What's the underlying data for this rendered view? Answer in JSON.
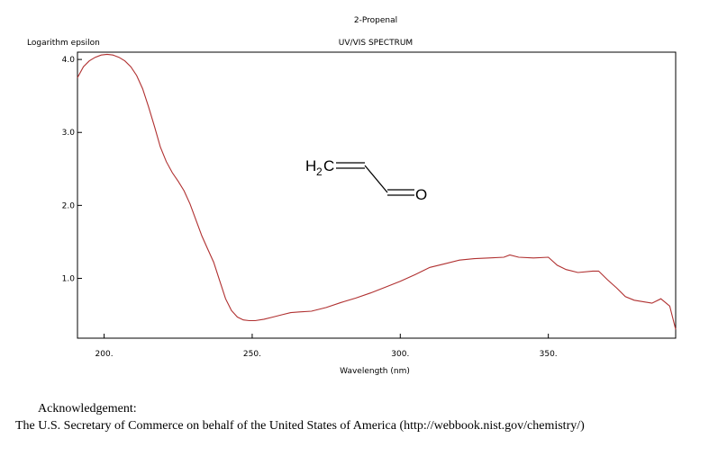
{
  "chart_data": {
    "type": "line",
    "title": "2-Propenal",
    "subtitle": "UV/VIS SPECTRUM",
    "xlabel": "Wavelength (nm)",
    "ylabel": "Logarithm epsilon",
    "xlim": [
      191,
      393
    ],
    "ylim": [
      0.18,
      4.1
    ],
    "x_ticks": [
      {
        "value": 200,
        "label": "200."
      },
      {
        "value": 250,
        "label": "250."
      },
      {
        "value": 300,
        "label": "300."
      },
      {
        "value": 350,
        "label": "350."
      }
    ],
    "y_ticks": [
      {
        "value": 4.0,
        "label": "4.0"
      },
      {
        "value": 3.0,
        "label": "3.0"
      },
      {
        "value": 2.0,
        "label": "2.0"
      },
      {
        "value": 1.0,
        "label": "1.0"
      }
    ],
    "line_color": "#b03030",
    "series": [
      {
        "x": [
          191,
          193,
          195,
          197,
          199,
          201,
          203,
          205,
          207,
          209,
          211,
          213,
          215,
          217,
          219,
          221,
          223,
          225,
          227,
          229,
          231,
          233,
          235,
          237,
          239,
          241,
          243,
          245,
          247,
          249,
          251,
          254,
          257,
          260,
          263,
          266,
          270,
          275,
          280,
          285,
          290,
          295,
          300,
          305,
          310,
          315,
          320,
          325,
          330,
          335,
          337,
          340,
          345,
          350,
          353,
          356,
          360,
          365,
          367,
          370,
          373,
          376,
          379,
          382,
          385,
          388,
          391,
          393
        ],
        "y": [
          3.75,
          3.9,
          3.98,
          4.03,
          4.06,
          4.07,
          4.06,
          4.03,
          3.98,
          3.9,
          3.78,
          3.6,
          3.35,
          3.08,
          2.8,
          2.6,
          2.45,
          2.33,
          2.2,
          2.02,
          1.8,
          1.58,
          1.4,
          1.22,
          0.97,
          0.72,
          0.56,
          0.47,
          0.43,
          0.42,
          0.42,
          0.44,
          0.47,
          0.5,
          0.53,
          0.54,
          0.55,
          0.6,
          0.67,
          0.73,
          0.8,
          0.88,
          0.96,
          1.05,
          1.15,
          1.2,
          1.25,
          1.27,
          1.28,
          1.29,
          1.32,
          1.29,
          1.28,
          1.29,
          1.18,
          1.12,
          1.08,
          1.1,
          1.1,
          0.98,
          0.87,
          0.75,
          0.7,
          0.68,
          0.66,
          0.72,
          0.62,
          0.3
        ]
      }
    ]
  },
  "acknowledgement": {
    "title": "Acknowledgement:",
    "text": "The U.S. Secretary of Commerce on behalf of the United States of America (http://webbook.nist.gov/chemistry/)"
  },
  "molecule": {
    "h2": "H",
    "sub": "2",
    "c": "C",
    "o": "O"
  }
}
